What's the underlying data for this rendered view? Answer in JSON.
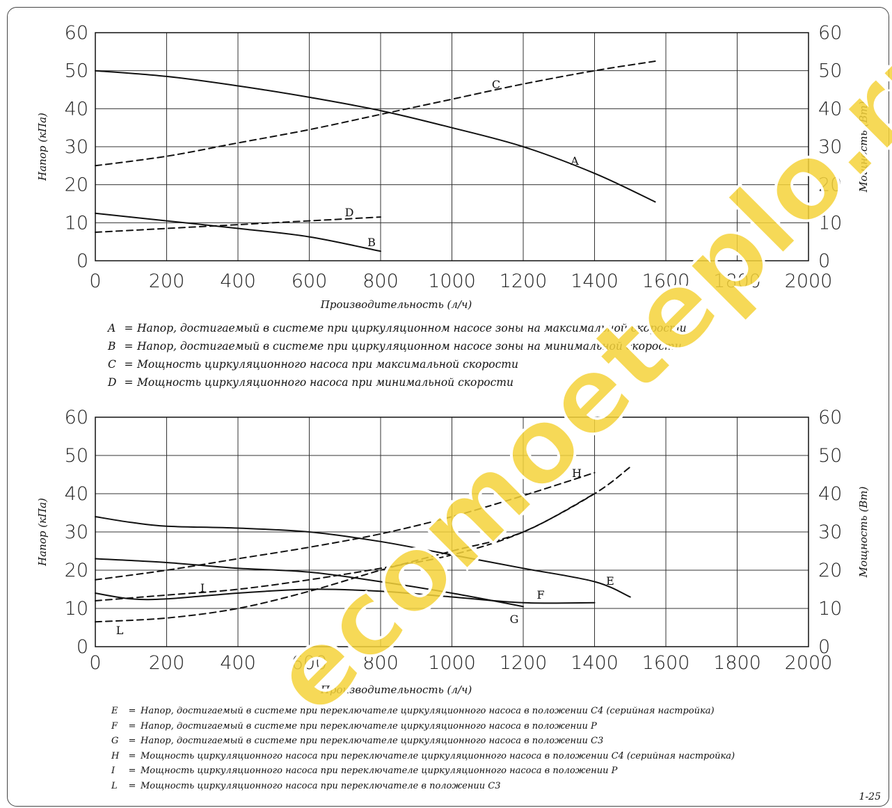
{
  "page": {
    "number": "1-25"
  },
  "watermark": {
    "text": "ecomoeteplo.ru"
  },
  "chart_data": [
    {
      "type": "line",
      "xlabel": "Производительность (л/ч)",
      "ylabel_left": "Напор (кПа)",
      "ylabel_right": "Мощность (Вт)",
      "xlim": [
        0,
        2000
      ],
      "ylim": [
        0,
        60
      ],
      "xticks": [
        "0",
        "200",
        "400",
        "600",
        "800",
        "1000",
        "1200",
        "1400",
        "1600",
        "1800",
        "2000"
      ],
      "yticks": [
        "0",
        "10",
        "20",
        "30",
        "40",
        "50",
        "60"
      ],
      "grid": true,
      "series": [
        {
          "name": "A",
          "style": "solid",
          "x": [
            0,
            200,
            400,
            600,
            800,
            1000,
            1200,
            1400,
            1570
          ],
          "y": [
            50,
            48.5,
            46,
            43,
            39.5,
            35,
            30,
            23,
            15.5
          ]
        },
        {
          "name": "B",
          "style": "solid",
          "x": [
            0,
            200,
            400,
            600,
            800
          ],
          "y": [
            12.5,
            10.5,
            8.5,
            6.3,
            2.5
          ]
        },
        {
          "name": "C",
          "style": "dashed",
          "x": [
            0,
            200,
            400,
            600,
            800,
            1000,
            1200,
            1400,
            1570
          ],
          "y": [
            25,
            27.5,
            31,
            34.5,
            38.5,
            42.5,
            46.5,
            50,
            52.5
          ]
        },
        {
          "name": "D",
          "style": "dashed",
          "x": [
            0,
            200,
            400,
            600,
            800
          ],
          "y": [
            7.5,
            8.5,
            9.5,
            10.5,
            11.5
          ]
        }
      ],
      "legend": [
        {
          "key": "A",
          "text": "Напор, достигаемый в системе при циркуляционном насосе зоны на максимальной скорости"
        },
        {
          "key": "B",
          "text": "Напор, достигаемый в системе при циркуляционном насосе зоны на минимальной скорости"
        },
        {
          "key": "C",
          "text": "Мощность циркуляционного насоса при максимальной скорости"
        },
        {
          "key": "D",
          "text": "Мощность циркуляционного насоса при минимальной скорости"
        }
      ]
    },
    {
      "type": "line",
      "xlabel": "Производительность (л/ч)",
      "ylabel_left": "Напор (кПа)",
      "ylabel_right": "Мощность (Вт)",
      "xlim": [
        0,
        2000
      ],
      "ylim": [
        0,
        60
      ],
      "xticks": [
        "0",
        "200",
        "400",
        "600",
        "800",
        "1000",
        "1200",
        "1400",
        "1600",
        "1800",
        "2000"
      ],
      "yticks": [
        "0",
        "10",
        "20",
        "30",
        "40",
        "50",
        "60"
      ],
      "grid": true,
      "series": [
        {
          "name": "E",
          "style": "solid",
          "x": [
            0,
            100,
            200,
            400,
            600,
            800,
            1000,
            1200,
            1400,
            1500
          ],
          "y": [
            34,
            32.5,
            31.5,
            31,
            30,
            27.5,
            24,
            20.5,
            17,
            13
          ]
        },
        {
          "name": "F",
          "style": "solid",
          "x": [
            0,
            200,
            400,
            600,
            800,
            1000,
            1200
          ],
          "y": [
            23,
            22,
            20.5,
            19.5,
            17,
            14,
            10.5
          ]
        },
        {
          "name": "G",
          "style": "solid",
          "x": [
            0,
            100,
            200,
            400,
            600,
            800,
            1000,
            1200,
            1400
          ],
          "y": [
            14,
            12.5,
            12.5,
            14,
            15,
            14.5,
            13,
            11.5,
            11.5
          ]
        },
        {
          "name": "H",
          "style": "dashed",
          "x": [
            0,
            200,
            400,
            600,
            800,
            1000,
            1200,
            1400
          ],
          "y": [
            17.5,
            20,
            23,
            26,
            29.5,
            34,
            39.5,
            45.5
          ]
        },
        {
          "name": "I",
          "style": "dashed",
          "x": [
            0,
            200,
            400,
            600,
            800,
            1000,
            1200,
            1400,
            1500
          ],
          "y": [
            12,
            13.5,
            15,
            17.5,
            20.5,
            24,
            30,
            40,
            47
          ]
        },
        {
          "name": "L",
          "style": "dashed",
          "x": [
            0,
            200,
            400,
            600,
            800,
            1000,
            1200,
            1400
          ],
          "y": [
            6.5,
            7.5,
            10,
            14.5,
            20,
            25,
            30,
            40
          ]
        }
      ],
      "legend": [
        {
          "key": "E",
          "text": "Напор, достигаемый в системе при переключателе циркуляционного насоса в положении С4 (серийная настройка)"
        },
        {
          "key": "F",
          "text": "Напор, достигаемый в системе при переключателе циркуляционного насоса в положении Р"
        },
        {
          "key": "G",
          "text": "Напор, достигаемый в системе при переключателе циркуляционного насоса в положении С3"
        },
        {
          "key": "H",
          "text": "Мощность циркуляционного насоса при переключателе циркуляционного насоса в положении С4 (серийная настройка)"
        },
        {
          "key": "I",
          "text": "Мощность циркуляционного насоса при переключателе циркуляционного насоса в положении Р"
        },
        {
          "key": "L",
          "text": "Мощность циркуляционного насоса при переключателе в положении С3"
        }
      ]
    }
  ]
}
